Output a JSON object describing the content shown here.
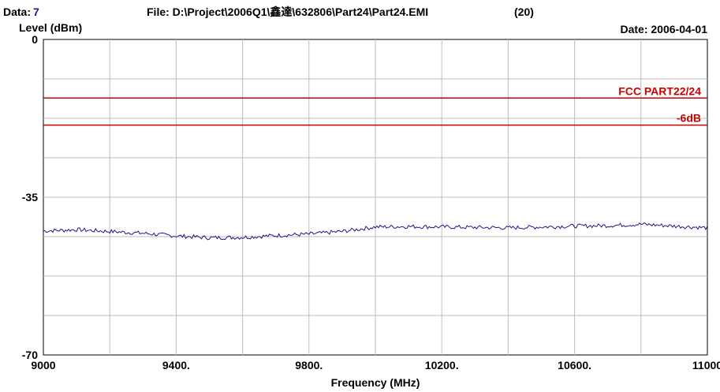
{
  "header": {
    "data_label": "Data:",
    "data_value": "7",
    "file_label": "File: D:\\Project\\2006Q1\\鑫達\\632806\\Part24\\Part24.EMI",
    "file_count": "(20)",
    "date_text": "Date: 2006-04-01"
  },
  "chart_data": {
    "type": "line",
    "ylabel": "Level (dBm)",
    "xlabel": "Frequency (MHz)",
    "xlim": [
      9000,
      11000
    ],
    "ylim": [
      -70,
      0
    ],
    "grid": true,
    "x_ticks": [
      {
        "value": 9000,
        "label": "9000"
      },
      {
        "value": 9400,
        "label": "9400."
      },
      {
        "value": 9800,
        "label": "9800."
      },
      {
        "value": 10200,
        "label": "10200."
      },
      {
        "value": 10600,
        "label": "10600."
      },
      {
        "value": 11000,
        "label": "11000"
      }
    ],
    "y_ticks": [
      {
        "value": 0,
        "label": "0"
      },
      {
        "value": -35,
        "label": "-35"
      },
      {
        "value": -70,
        "label": "-70"
      }
    ],
    "limit_lines": [
      {
        "label": "FCC PART22/24",
        "value": -13,
        "color": "#cc0000"
      },
      {
        "label": "-6dB",
        "value": -19,
        "color": "#cc0000"
      }
    ],
    "series": [
      {
        "color": "#1a1a8c",
        "x": [
          9000,
          9100,
          9200,
          9300,
          9400,
          9500,
          9600,
          9700,
          9800,
          9900,
          10000,
          10100,
          10200,
          10300,
          10400,
          10500,
          10600,
          10700,
          10800,
          10900,
          11000
        ],
        "y": [
          -42.5,
          -42.2,
          -42.6,
          -43.0,
          -43.6,
          -44.0,
          -43.9,
          -43.5,
          -43.2,
          -42.6,
          -41.6,
          -41.5,
          -41.6,
          -41.7,
          -41.8,
          -41.6,
          -41.4,
          -41.3,
          -41.0,
          -41.4,
          -41.8
        ]
      }
    ]
  }
}
